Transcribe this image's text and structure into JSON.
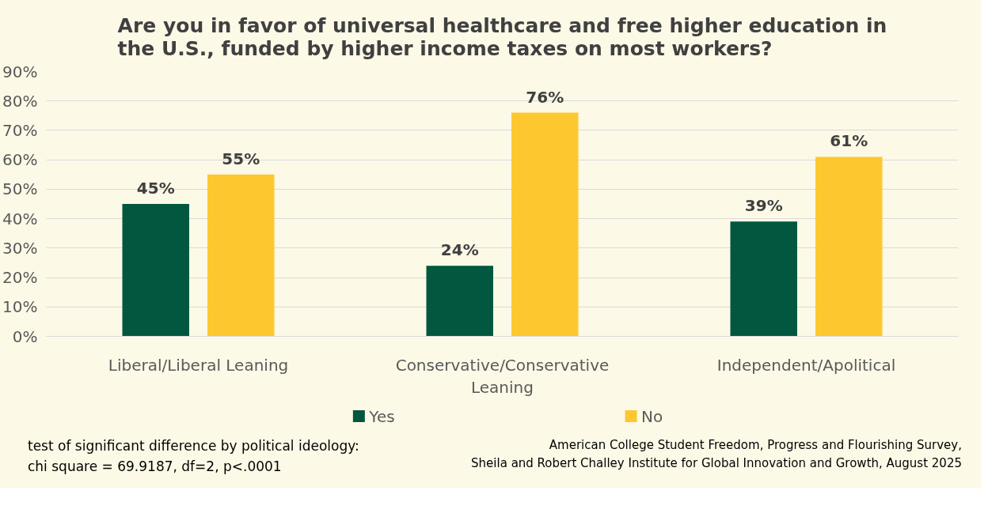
{
  "chart_data": {
    "type": "bar",
    "title": "Are you in favor of universal healthcare and free higher education in the U.S., funded by higher income taxes on most workers?",
    "categories": [
      "Liberal/Liberal Leaning",
      "Conservative/Conservative Leaning",
      "Independent/Apolitical"
    ],
    "series": [
      {
        "name": "Yes",
        "color": "#02573f",
        "values": [
          45,
          24,
          39
        ],
        "value_labels": [
          "45%",
          "24%",
          "39%"
        ]
      },
      {
        "name": "No",
        "color": "#fdc72f",
        "values": [
          55,
          76,
          61
        ],
        "value_labels": [
          "55%",
          "76%",
          "61%"
        ]
      }
    ],
    "ylim": [
      0,
      90
    ],
    "yticks": [
      {
        "value": 0,
        "label": "0%"
      },
      {
        "value": 10,
        "label": "10%"
      },
      {
        "value": 20,
        "label": "20%"
      },
      {
        "value": 30,
        "label": "30%"
      },
      {
        "value": 40,
        "label": "40%"
      },
      {
        "value": 50,
        "label": "50%"
      },
      {
        "value": 60,
        "label": "60%"
      },
      {
        "value": 70,
        "label": "70%"
      },
      {
        "value": 80,
        "label": "80%"
      },
      {
        "value": 90,
        "label": "90%"
      }
    ],
    "grid": "y",
    "legend": "bottom",
    "annotations": [
      "test of significant difference by political ideology:\nchi square = 69.9187, df=2, p<.0001",
      "American College Student Freedom, Progress and Flourishing Survey,\nSheila and Robert Challey Institute for Global Innovation and Growth, August 2025"
    ]
  }
}
